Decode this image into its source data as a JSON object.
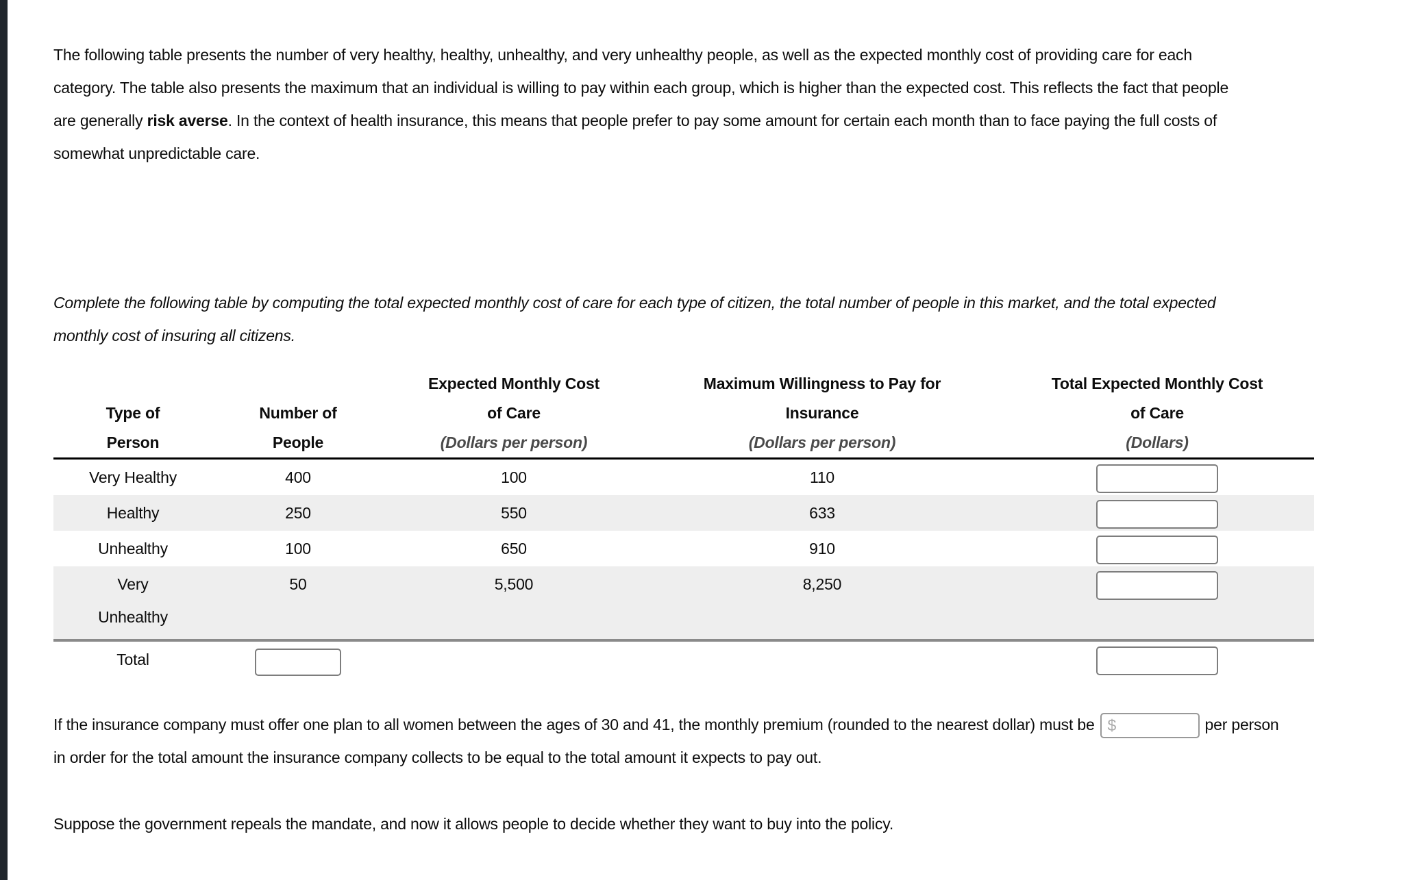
{
  "page": {
    "background": "#ffffff",
    "left_bar_color": "#20262c",
    "shaded_row_color": "#eeeeee"
  },
  "intro": {
    "text_before_bold": "The following table presents the number of very healthy, healthy, unhealthy, and very unhealthy people, as well as the expected monthly cost of providing care for each category. The table also presents the maximum that an individual is willing to pay within each group, which is higher than the expected cost. This reflects the fact that people are generally ",
    "bold_text": "risk averse",
    "text_after_bold": ". In the context of health insurance, this means that people prefer to pay some amount for certain each month than to face paying the full costs of somewhat unpredictable care."
  },
  "instruction": "Complete the following table by computing the total expected monthly cost of care for each type of citizen, the total number of people in this market, and the total expected monthly cost of insuring all citizens.",
  "table": {
    "columns": [
      {
        "title_lines": [
          "Type of",
          "Person"
        ],
        "units": ""
      },
      {
        "title_lines": [
          "Number of",
          "People"
        ],
        "units": ""
      },
      {
        "title_lines": [
          "Expected Monthly Cost",
          "of Care"
        ],
        "units": "(Dollars per person)"
      },
      {
        "title_lines": [
          "Maximum Willingness to Pay for",
          "Insurance"
        ],
        "units": "(Dollars per person)"
      },
      {
        "title_lines": [
          "Total Expected Monthly Cost",
          "of Care"
        ],
        "units": "(Dollars)"
      }
    ],
    "rows": [
      {
        "type": "Very Healthy",
        "number": "400",
        "expected_cost": "100",
        "max_wtp": "110"
      },
      {
        "type": "Healthy",
        "number": "250",
        "expected_cost": "550",
        "max_wtp": "633"
      },
      {
        "type": "Unhealthy",
        "number": "100",
        "expected_cost": "650",
        "max_wtp": "910"
      },
      {
        "type": "Very Unhealthy",
        "number": "50",
        "expected_cost": "5,500",
        "max_wtp": "8,250"
      }
    ],
    "total_label": "Total"
  },
  "premium_question": {
    "text_before_input": "If the insurance company must offer one plan to all women between the ages of 30 and 41, the monthly premium (rounded to the nearest dollar) must be",
    "currency_symbol": "$",
    "text_after_input": "per person in order for the total amount the insurance company collects to be equal to the total amount it expects to pay out."
  },
  "footer_text": "Suppose the government repeals the mandate, and now it allows people to decide whether they want to buy into the policy."
}
